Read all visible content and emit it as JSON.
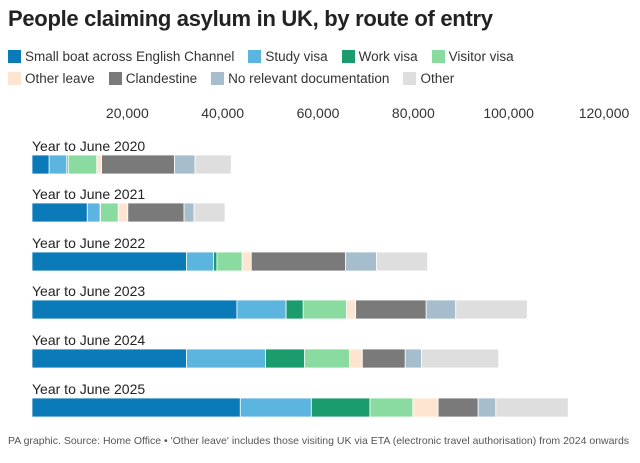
{
  "chart_data": {
    "type": "bar",
    "orientation": "horizontal",
    "stacked": true,
    "title": "People claiming asylum in UK, by route of entry",
    "categories": [
      "Year to June 2020",
      "Year to June 2021",
      "Year to June 2022",
      "Year to June 2023",
      "Year to June 2024",
      "Year to June 2025"
    ],
    "series": [
      {
        "name": "Small boat across English Channel",
        "color": "#0a7ab8",
        "values": [
          3600,
          11600,
          32400,
          43000,
          32400,
          43700
        ]
      },
      {
        "name": "Study visa",
        "color": "#5bb5de",
        "values": [
          3700,
          2700,
          5700,
          10300,
          16600,
          14900
        ]
      },
      {
        "name": "Work visa",
        "color": "#1b9c6d",
        "values": [
          300,
          100,
          700,
          3600,
          8200,
          12300
        ]
      },
      {
        "name": "Visitor visa",
        "color": "#8adba0",
        "values": [
          6000,
          3700,
          5300,
          9100,
          9400,
          9000
        ]
      },
      {
        "name": "Other leave",
        "color": "#fde5d1",
        "values": [
          1000,
          2000,
          1900,
          1900,
          2700,
          5300
        ]
      },
      {
        "name": "Clandestine",
        "color": "#7a7a7a",
        "values": [
          15300,
          11800,
          19800,
          14800,
          9000,
          8400
        ]
      },
      {
        "name": "No relevant documentation",
        "color": "#a5bdcc",
        "values": [
          4300,
          2100,
          6500,
          6200,
          3400,
          3700
        ]
      },
      {
        "name": "Other",
        "color": "#dedede",
        "values": [
          7600,
          6500,
          10700,
          15000,
          16200,
          15200
        ]
      }
    ],
    "xlim": [
      0,
      120000
    ],
    "xticks": [
      20000,
      40000,
      60000,
      80000,
      100000,
      120000
    ],
    "xtick_labels": [
      "20,000",
      "40,000",
      "60,000",
      "80,000",
      "100,000",
      "120,000"
    ],
    "grid": false,
    "legend_position": "top",
    "footer": "PA graphic. Source: Home Office • 'Other leave' includes those visiting UK via ETA (electronic travel authorisation) from 2024 onwards"
  }
}
